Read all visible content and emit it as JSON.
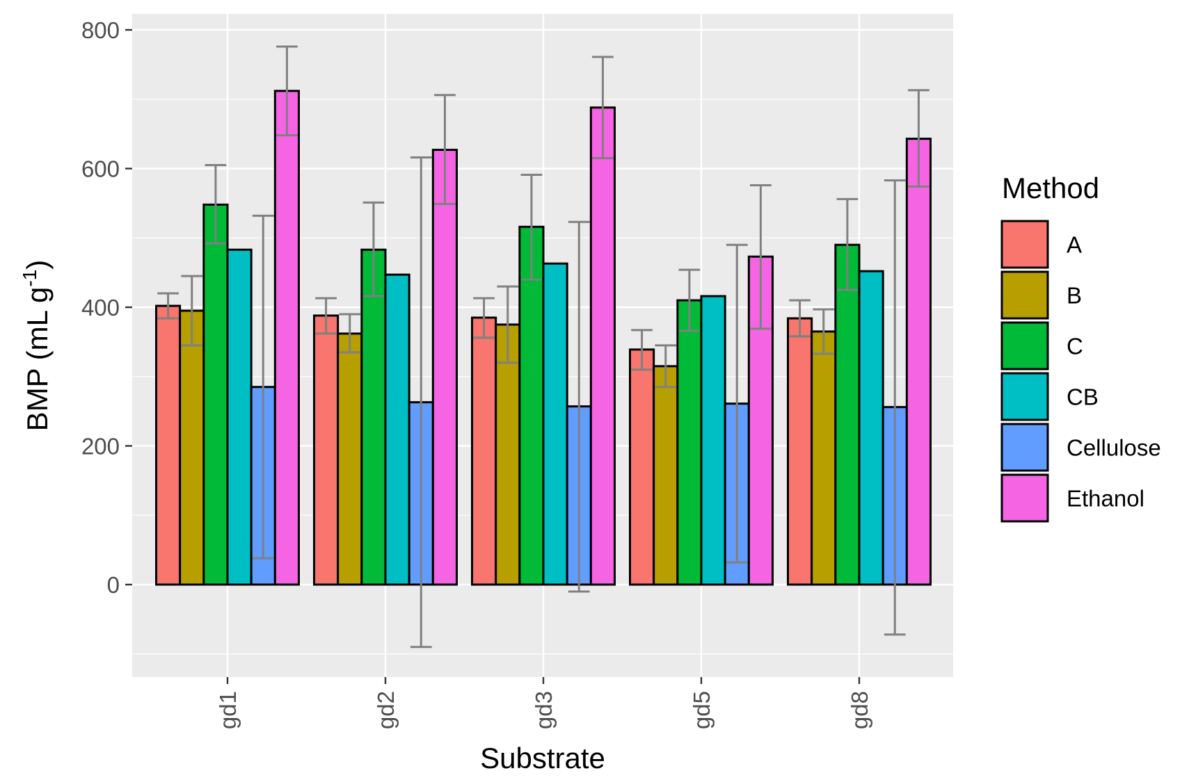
{
  "chart_data": {
    "type": "bar",
    "title": "",
    "xlabel": "Substrate",
    "ylabel": {
      "main": "BMP (mL g",
      "superscript": "-1",
      "close": ")"
    },
    "ylim": [
      -130,
      800
    ],
    "yticks": [
      "0",
      "200",
      "400",
      "600",
      "800"
    ],
    "grid": true,
    "legend_title": "Method",
    "legend_position": "right",
    "categories": [
      "gd1",
      "gd2",
      "gd3",
      "gd5",
      "gd8"
    ],
    "series": [
      {
        "name": "A",
        "color": "#F8766D",
        "values": [
          402,
          388,
          385,
          339,
          384
        ],
        "err_low": [
          384,
          362,
          356,
          310,
          358
        ],
        "err_high": [
          420,
          413,
          413,
          367,
          410
        ]
      },
      {
        "name": "B",
        "color": "#B79F00",
        "values": [
          395,
          362,
          375,
          315,
          365
        ],
        "err_low": [
          345,
          335,
          320,
          285,
          333
        ],
        "err_high": [
          445,
          390,
          430,
          345,
          397
        ]
      },
      {
        "name": "C",
        "color": "#00BA38",
        "values": [
          548,
          483,
          516,
          410,
          490
        ],
        "err_low": [
          492,
          416,
          440,
          366,
          425
        ],
        "err_high": [
          605,
          551,
          591,
          454,
          556
        ]
      },
      {
        "name": "CB",
        "color": "#00BFC4",
        "values": [
          483,
          447,
          463,
          416,
          452
        ],
        "err_low": [
          483,
          447,
          463,
          416,
          452
        ],
        "err_high": [
          483,
          447,
          463,
          416,
          452
        ]
      },
      {
        "name": "Cellulose",
        "color": "#619CFF",
        "values": [
          285,
          263,
          257,
          261,
          256
        ],
        "err_low": [
          38,
          -90,
          -10,
          32,
          -72
        ],
        "err_high": [
          532,
          616,
          523,
          490,
          583
        ]
      },
      {
        "name": "Ethanol",
        "color": "#F564E3",
        "values": [
          712,
          627,
          688,
          473,
          643
        ],
        "err_low": [
          648,
          549,
          615,
          369,
          574
        ],
        "err_high": [
          776,
          706,
          761,
          576,
          713
        ]
      }
    ]
  }
}
